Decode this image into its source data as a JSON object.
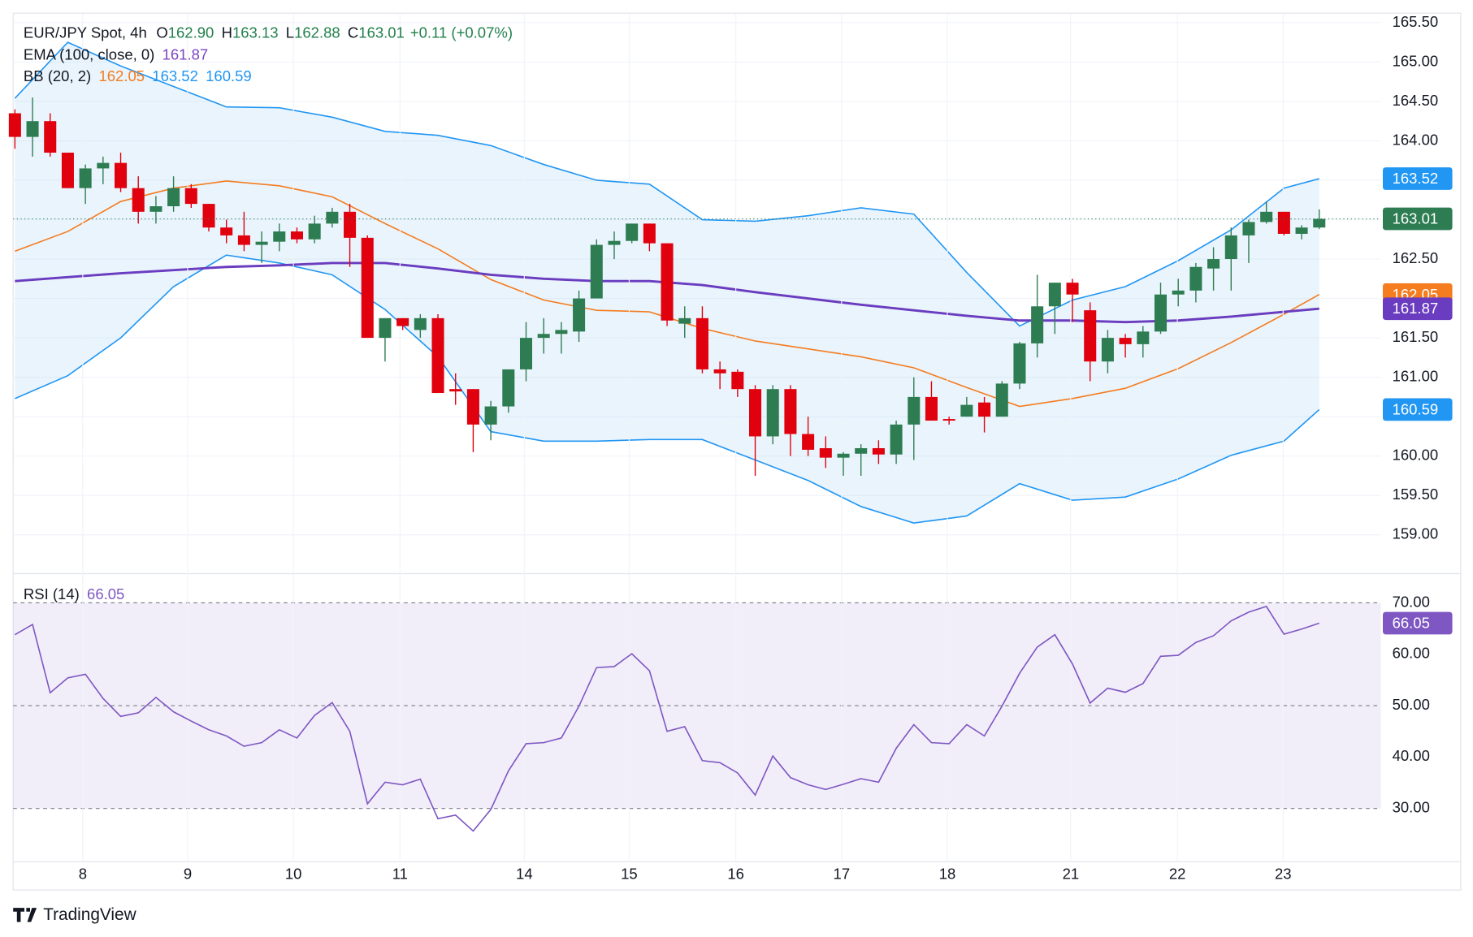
{
  "brand": "TradingView",
  "chart_data": [
    {
      "type": "candlestick",
      "header": {
        "symbol": "EUR/JPY Spot, 4h",
        "ohlc": [
          {
            "label": "O",
            "value": "162.90"
          },
          {
            "label": "H",
            "value": "163.13"
          },
          {
            "label": "L",
            "value": "162.88"
          },
          {
            "label": "C",
            "value": "163.01"
          }
        ],
        "change": "+0.11 (+0.07%)",
        "value_color": "#22804c"
      },
      "indicators": [
        {
          "label": "EMA (100, close, 0)",
          "values": [
            {
              "text": "161.87",
              "color": "#7b45c2"
            }
          ]
        },
        {
          "label": "BB (20, 2)",
          "values": [
            {
              "text": "162.05",
              "color": "#f57c1f"
            },
            {
              "text": "163.52",
              "color": "#2196f3"
            },
            {
              "text": "160.59",
              "color": "#2196f3"
            }
          ]
        }
      ],
      "open": [
        164.35,
        164.05,
        164.25,
        163.85,
        163.4,
        163.65,
        163.72,
        163.4,
        163.1,
        163.17,
        163.4,
        163.2,
        162.9,
        162.8,
        162.68,
        162.72,
        162.85,
        162.75,
        162.95,
        163.1,
        162.77,
        161.5,
        161.75,
        161.6,
        161.75,
        160.85,
        160.85,
        160.4,
        160.63,
        161.1,
        161.5,
        161.55,
        161.58,
        162.0,
        162.68,
        162.73,
        162.95,
        162.7,
        161.68,
        161.75,
        161.1,
        161.07,
        160.85,
        160.25,
        160.85,
        160.28,
        160.1,
        159.98,
        160.03,
        160.1,
        160.02,
        160.4,
        160.75,
        160.47,
        160.5,
        160.68,
        160.5,
        160.92,
        161.43,
        161.9,
        162.2,
        161.85,
        161.2,
        161.5,
        161.42,
        161.58,
        162.05,
        162.1,
        162.38,
        162.5,
        162.8,
        162.97,
        163.1,
        162.82,
        162.9
      ],
      "high": [
        164.4,
        164.55,
        164.35,
        163.85,
        163.7,
        163.8,
        163.85,
        163.55,
        163.3,
        163.55,
        163.45,
        163.2,
        163.0,
        163.1,
        162.85,
        162.95,
        162.9,
        163.05,
        163.15,
        163.2,
        162.8,
        161.75,
        161.75,
        161.8,
        161.8,
        161.05,
        160.85,
        160.7,
        161.1,
        161.7,
        161.75,
        161.7,
        162.1,
        162.75,
        162.85,
        162.95,
        162.95,
        162.7,
        161.9,
        161.9,
        161.2,
        161.1,
        160.9,
        160.9,
        160.9,
        160.5,
        160.25,
        160.05,
        160.15,
        160.2,
        160.45,
        161.0,
        160.95,
        160.5,
        160.75,
        160.75,
        160.95,
        161.45,
        162.3,
        162.2,
        162.25,
        161.95,
        161.6,
        161.55,
        161.65,
        162.2,
        162.25,
        162.45,
        162.65,
        162.9,
        163.0,
        163.23,
        163.1,
        162.93,
        163.13
      ],
      "low": [
        163.9,
        163.8,
        163.8,
        163.4,
        163.2,
        163.45,
        163.35,
        162.95,
        162.95,
        163.1,
        163.15,
        162.85,
        162.7,
        162.6,
        162.45,
        162.6,
        162.7,
        162.7,
        162.9,
        162.4,
        161.5,
        161.2,
        161.6,
        161.5,
        160.8,
        160.65,
        160.05,
        160.2,
        160.55,
        160.95,
        161.3,
        161.3,
        161.45,
        162.0,
        162.5,
        162.7,
        162.6,
        161.65,
        161.5,
        161.05,
        160.85,
        160.75,
        159.75,
        160.15,
        160.0,
        160.0,
        159.85,
        159.75,
        159.75,
        159.9,
        159.9,
        159.95,
        160.45,
        160.4,
        160.5,
        160.3,
        160.5,
        160.85,
        161.25,
        161.55,
        161.7,
        160.95,
        161.05,
        161.25,
        161.25,
        161.55,
        161.9,
        161.95,
        162.1,
        162.1,
        162.45,
        162.95,
        162.8,
        162.75,
        162.88
      ],
      "close": [
        164.05,
        164.25,
        163.85,
        163.4,
        163.65,
        163.72,
        163.4,
        163.1,
        163.17,
        163.4,
        163.2,
        162.9,
        162.8,
        162.68,
        162.72,
        162.85,
        162.75,
        162.95,
        163.1,
        162.77,
        161.5,
        161.75,
        161.65,
        161.75,
        160.8,
        160.82,
        160.4,
        160.63,
        161.1,
        161.5,
        161.55,
        161.6,
        162.0,
        162.68,
        162.73,
        162.95,
        162.7,
        161.72,
        161.75,
        161.1,
        161.05,
        160.85,
        160.25,
        160.85,
        160.28,
        160.08,
        159.98,
        160.03,
        160.1,
        160.02,
        160.4,
        160.75,
        160.45,
        160.45,
        160.65,
        160.5,
        160.92,
        161.43,
        161.9,
        162.2,
        162.05,
        161.2,
        161.5,
        161.42,
        161.58,
        162.05,
        162.1,
        162.4,
        162.5,
        162.8,
        162.97,
        163.1,
        162.82,
        162.9,
        163.01
      ],
      "up_color": "#2e7d52",
      "down_color": "#e0000e",
      "close_badge": "163.01",
      "series": [
        {
          "color": "#a9d2f5",
          "x": [
            0,
            3,
            6,
            9,
            12,
            15,
            18,
            21,
            24,
            27,
            30,
            33,
            36,
            39,
            42,
            45,
            48,
            51,
            54,
            57,
            60,
            63,
            66,
            69,
            72,
            74
          ],
          "values": [
            164.54,
            165.25,
            164.95,
            164.69,
            164.43,
            164.42,
            164.3,
            164.12,
            164.07,
            163.94,
            163.7,
            163.5,
            163.45,
            163.0,
            162.98,
            163.05,
            163.15,
            163.07,
            162.33,
            161.65,
            161.98,
            162.15,
            162.48,
            162.87,
            163.4,
            163.52
          ],
          "badge": "163.52",
          "stroke": "#2196f3",
          "role": "upper"
        },
        {
          "color": "#2196f3",
          "x": [
            0,
            3,
            6,
            9,
            12,
            15,
            18,
            21,
            24,
            27,
            30,
            33,
            36,
            39,
            42,
            45,
            48,
            51,
            54,
            57,
            60,
            63,
            66,
            69,
            72,
            74
          ],
          "values": [
            160.73,
            161.02,
            161.5,
            162.15,
            162.55,
            162.45,
            162.3,
            161.86,
            161.26,
            160.31,
            160.19,
            160.19,
            160.21,
            160.21,
            159.95,
            159.69,
            159.36,
            159.15,
            159.24,
            159.65,
            159.44,
            159.48,
            159.71,
            160.01,
            160.19,
            160.59
          ],
          "badge": "160.59",
          "stroke": "#2196f3",
          "role": "lower"
        },
        {
          "color": "#f57c1f",
          "x": [
            0,
            3,
            6,
            9,
            12,
            15,
            18,
            21,
            24,
            27,
            30,
            33,
            36,
            39,
            42,
            45,
            48,
            51,
            54,
            57,
            60,
            63,
            66,
            69,
            72,
            74
          ],
          "values": [
            162.6,
            162.85,
            163.23,
            163.4,
            163.49,
            163.43,
            163.29,
            162.95,
            162.63,
            162.24,
            161.98,
            161.85,
            161.83,
            161.62,
            161.46,
            161.36,
            161.26,
            161.12,
            160.87,
            160.63,
            160.73,
            160.86,
            161.11,
            161.44,
            161.8,
            162.05
          ],
          "badge": "162.05",
          "stroke": "#f57c1f",
          "role": "basis"
        },
        {
          "color": "#6a3cc0",
          "x": [
            0,
            3,
            6,
            9,
            12,
            15,
            18,
            21,
            24,
            27,
            30,
            33,
            36,
            39,
            42,
            45,
            48,
            51,
            54,
            57,
            60,
            63,
            66,
            69,
            72,
            74
          ],
          "values": [
            162.22,
            162.27,
            162.32,
            162.36,
            162.4,
            162.42,
            162.45,
            162.45,
            162.38,
            162.3,
            162.25,
            162.22,
            162.22,
            162.17,
            162.08,
            162.0,
            161.92,
            161.85,
            161.78,
            161.72,
            161.72,
            161.7,
            161.72,
            161.77,
            161.83,
            161.87
          ],
          "badge": "161.87",
          "stroke": "#6a3cc0",
          "role": "ema"
        }
      ],
      "xlim": [
        -0.1,
        77.5
      ],
      "ylim": [
        158.52,
        165.62
      ],
      "yticks": [
        {
          "value": 159,
          "label": "159.00"
        },
        {
          "value": 159.5,
          "label": "159.50"
        },
        {
          "value": 160,
          "label": "160.00"
        },
        {
          "value": 160.5,
          "label": "160.50"
        },
        {
          "value": 161,
          "label": "161.00"
        },
        {
          "value": 161.5,
          "label": "161.50"
        },
        {
          "value": 162,
          "label": "162.00"
        },
        {
          "value": 162.5,
          "label": "162.50"
        },
        {
          "value": 163,
          "label": "163.00"
        },
        {
          "value": 163.5,
          "label": "163.50"
        },
        {
          "value": 164,
          "label": "164.00"
        },
        {
          "value": 164.5,
          "label": "164.50"
        },
        {
          "value": 165,
          "label": "165.00"
        },
        {
          "value": 165.5,
          "label": "165.50"
        }
      ],
      "grid": true
    },
    {
      "type": "line",
      "title": "RSI (14)",
      "header_value": "66.05",
      "badge": "66.05",
      "color": "#7e57c2",
      "values": [
        63.8,
        65.8,
        52.5,
        55.4,
        56.1,
        51.4,
        47.9,
        48.6,
        51.6,
        48.8,
        47.0,
        45.3,
        44.1,
        42.1,
        42.8,
        45.3,
        43.7,
        48.1,
        50.6,
        45.0,
        30.9,
        35.1,
        34.6,
        35.7,
        28.0,
        28.7,
        25.6,
        29.8,
        37.3,
        42.6,
        42.8,
        43.7,
        49.9,
        57.4,
        57.6,
        60.1,
        56.8,
        45.0,
        45.9,
        39.3,
        38.9,
        36.9,
        32.6,
        40.2,
        36.0,
        34.6,
        33.7,
        34.7,
        35.8,
        35.1,
        41.7,
        46.3,
        42.8,
        42.6,
        46.3,
        44.1,
        49.9,
        56.3,
        61.4,
        63.8,
        58.1,
        50.5,
        53.4,
        52.6,
        54.3,
        59.6,
        59.8,
        62.3,
        63.6,
        66.5,
        68.2,
        69.3,
        63.9,
        64.9,
        66.05
      ],
      "levels": [
        30,
        50,
        70
      ],
      "xlim": [
        -0.1,
        77.5
      ],
      "ylim": [
        19.6,
        75.5
      ],
      "yticks": [
        {
          "value": 30,
          "label": "30.00"
        },
        {
          "value": 40,
          "label": "40.00"
        },
        {
          "value": 50,
          "label": "50.00"
        },
        {
          "value": 60,
          "label": "60.00"
        },
        {
          "value": 70,
          "label": "70.00"
        }
      ],
      "xticks": [
        {
          "value": 3.85,
          "label": "8"
        },
        {
          "value": 9.8,
          "label": "9"
        },
        {
          "value": 15.8,
          "label": "10"
        },
        {
          "value": 21.85,
          "label": "11"
        },
        {
          "value": 28.9,
          "label": "14"
        },
        {
          "value": 34.85,
          "label": "15"
        },
        {
          "value": 40.9,
          "label": "16"
        },
        {
          "value": 46.9,
          "label": "17"
        },
        {
          "value": 52.9,
          "label": "18"
        },
        {
          "value": 59.9,
          "label": "21"
        },
        {
          "value": 65.95,
          "label": "22"
        },
        {
          "value": 71.95,
          "label": "23"
        }
      ]
    }
  ]
}
